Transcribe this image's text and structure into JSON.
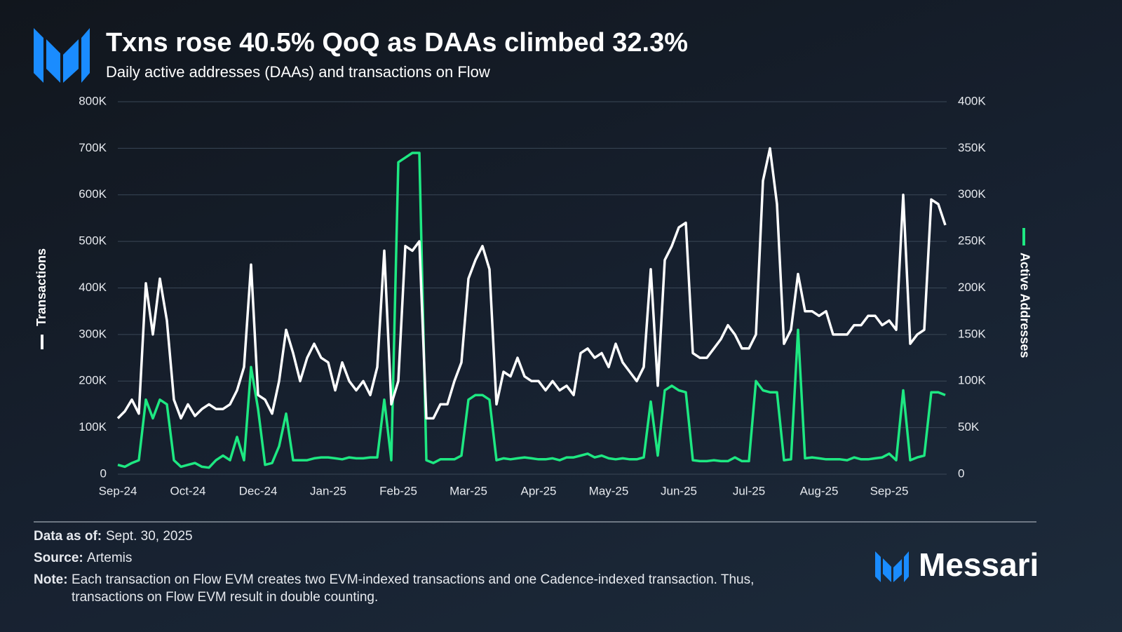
{
  "chart_data": {
    "type": "line",
    "title": "Txns rose 40.5% QoQ as DAAs climbed 32.3%",
    "subtitle": "Daily active addresses (DAAs) and transactions on Flow",
    "categories": [
      "Sep-24",
      null,
      null,
      null,
      null,
      null,
      null,
      null,
      null,
      null,
      "Oct-24",
      null,
      null,
      null,
      null,
      null,
      null,
      null,
      null,
      null,
      "Dec-24",
      null,
      null,
      null,
      null,
      null,
      null,
      null,
      null,
      null,
      "Jan-25",
      null,
      null,
      null,
      null,
      null,
      null,
      null,
      null,
      null,
      "Feb-25",
      null,
      null,
      null,
      null,
      null,
      null,
      null,
      null,
      null,
      "Mar-25",
      null,
      null,
      null,
      null,
      null,
      null,
      null,
      null,
      null,
      "Apr-25",
      null,
      null,
      null,
      null,
      null,
      null,
      null,
      null,
      null,
      "May-25",
      null,
      null,
      null,
      null,
      null,
      null,
      null,
      null,
      null,
      "Jun-25",
      null,
      null,
      null,
      null,
      null,
      null,
      null,
      null,
      null,
      "Jul-25",
      null,
      null,
      null,
      null,
      null,
      null,
      null,
      null,
      null,
      "Aug-25",
      null,
      null,
      null,
      null,
      null,
      null,
      null,
      null,
      null,
      "Sep-25",
      null,
      null,
      null,
      null,
      null,
      null,
      null,
      null
    ],
    "series": [
      {
        "name": "Transactions",
        "color": "#ffffff",
        "axis": "y",
        "values": [
          120000,
          135000,
          160000,
          130000,
          410000,
          300000,
          420000,
          330000,
          160000,
          120000,
          150000,
          125000,
          140000,
          150000,
          140000,
          140000,
          150000,
          180000,
          230000,
          450000,
          170000,
          160000,
          130000,
          200000,
          310000,
          260000,
          200000,
          250000,
          280000,
          250000,
          240000,
          180000,
          240000,
          200000,
          180000,
          200000,
          170000,
          230000,
          480000,
          150000,
          200000,
          490000,
          480000,
          500000,
          120000,
          120000,
          150000,
          150000,
          200000,
          240000,
          420000,
          460000,
          490000,
          440000,
          150000,
          220000,
          210000,
          250000,
          210000,
          200000,
          200000,
          180000,
          200000,
          180000,
          190000,
          170000,
          260000,
          270000,
          250000,
          260000,
          230000,
          280000,
          240000,
          220000,
          200000,
          230000,
          440000,
          190000,
          460000,
          490000,
          530000,
          540000,
          260000,
          250000,
          250000,
          270000,
          290000,
          320000,
          300000,
          270000,
          270000,
          300000,
          630000,
          700000,
          580000,
          280000,
          310000,
          430000,
          350000,
          350000,
          340000,
          350000,
          300000,
          300000,
          300000,
          320000,
          320000,
          340000,
          340000,
          320000,
          330000,
          310000,
          600000,
          280000,
          300000,
          310000,
          590000,
          580000,
          535000
        ]
      },
      {
        "name": "Active Addresses",
        "color": "#1ee882",
        "axis": "y2",
        "values": [
          10000,
          8000,
          12000,
          15000,
          80000,
          60000,
          80000,
          75000,
          15000,
          8000,
          10000,
          12000,
          8000,
          7000,
          15000,
          20000,
          15000,
          40000,
          15000,
          115000,
          70000,
          10000,
          12000,
          30000,
          65000,
          15000,
          15000,
          15000,
          17000,
          18000,
          18000,
          17000,
          16000,
          18000,
          17000,
          17000,
          18000,
          18000,
          80000,
          15000,
          335000,
          340000,
          345000,
          345000,
          15000,
          12000,
          16000,
          16000,
          16000,
          20000,
          80000,
          85000,
          85000,
          80000,
          15000,
          17000,
          16000,
          17000,
          18000,
          17000,
          16000,
          16000,
          17000,
          15000,
          18000,
          18000,
          20000,
          22000,
          18000,
          20000,
          17000,
          16000,
          17000,
          16000,
          16000,
          18000,
          78000,
          20000,
          90000,
          95000,
          90000,
          88000,
          15000,
          14000,
          14000,
          15000,
          14000,
          14000,
          18000,
          14000,
          14000,
          100000,
          90000,
          88000,
          88000,
          15000,
          16000,
          155000,
          17000,
          18000,
          17000,
          16000,
          16000,
          16000,
          15000,
          18000,
          16000,
          16000,
          17000,
          18000,
          22000,
          15000,
          90000,
          15000,
          18000,
          20000,
          88000,
          88000,
          85000
        ]
      }
    ],
    "ylim": [
      0,
      800000
    ],
    "yticks": [
      0,
      {
        "value": 100000,
        "label": "100K"
      },
      {
        "value": 200000,
        "label": "200K"
      },
      {
        "value": 300000,
        "label": "300K"
      },
      {
        "value": 400000,
        "label": "400K"
      },
      {
        "value": 500000,
        "label": "500K"
      },
      {
        "value": 600000,
        "label": "600K"
      },
      {
        "value": 700000,
        "label": "700K"
      },
      {
        "value": 800000,
        "label": "800K"
      }
    ],
    "y2lim": [
      0,
      400000
    ],
    "y2ticks": [
      0,
      {
        "value": 50000,
        "label": "50K"
      },
      {
        "value": 100000,
        "label": "100K"
      },
      {
        "value": 150000,
        "label": "150K"
      },
      {
        "value": 200000,
        "label": "200K"
      },
      {
        "value": 250000,
        "label": "250K"
      },
      {
        "value": 300000,
        "label": "300K"
      },
      {
        "value": 350000,
        "label": "350K"
      },
      {
        "value": 400000,
        "label": "400K"
      }
    ],
    "grid": true
  },
  "footer": {
    "data_as_of_label": "Data as of:",
    "data_as_of": "Sept. 30, 2025",
    "source_label": "Source:",
    "source": "Artemis",
    "note_label": "Note:",
    "note_lines": [
      "Each transaction on Flow EVM creates two EVM-indexed transactions and one Cadence-indexed transaction. Thus,",
      "transactions on Flow EVM result in double counting."
    ],
    "brand": "Messari"
  }
}
